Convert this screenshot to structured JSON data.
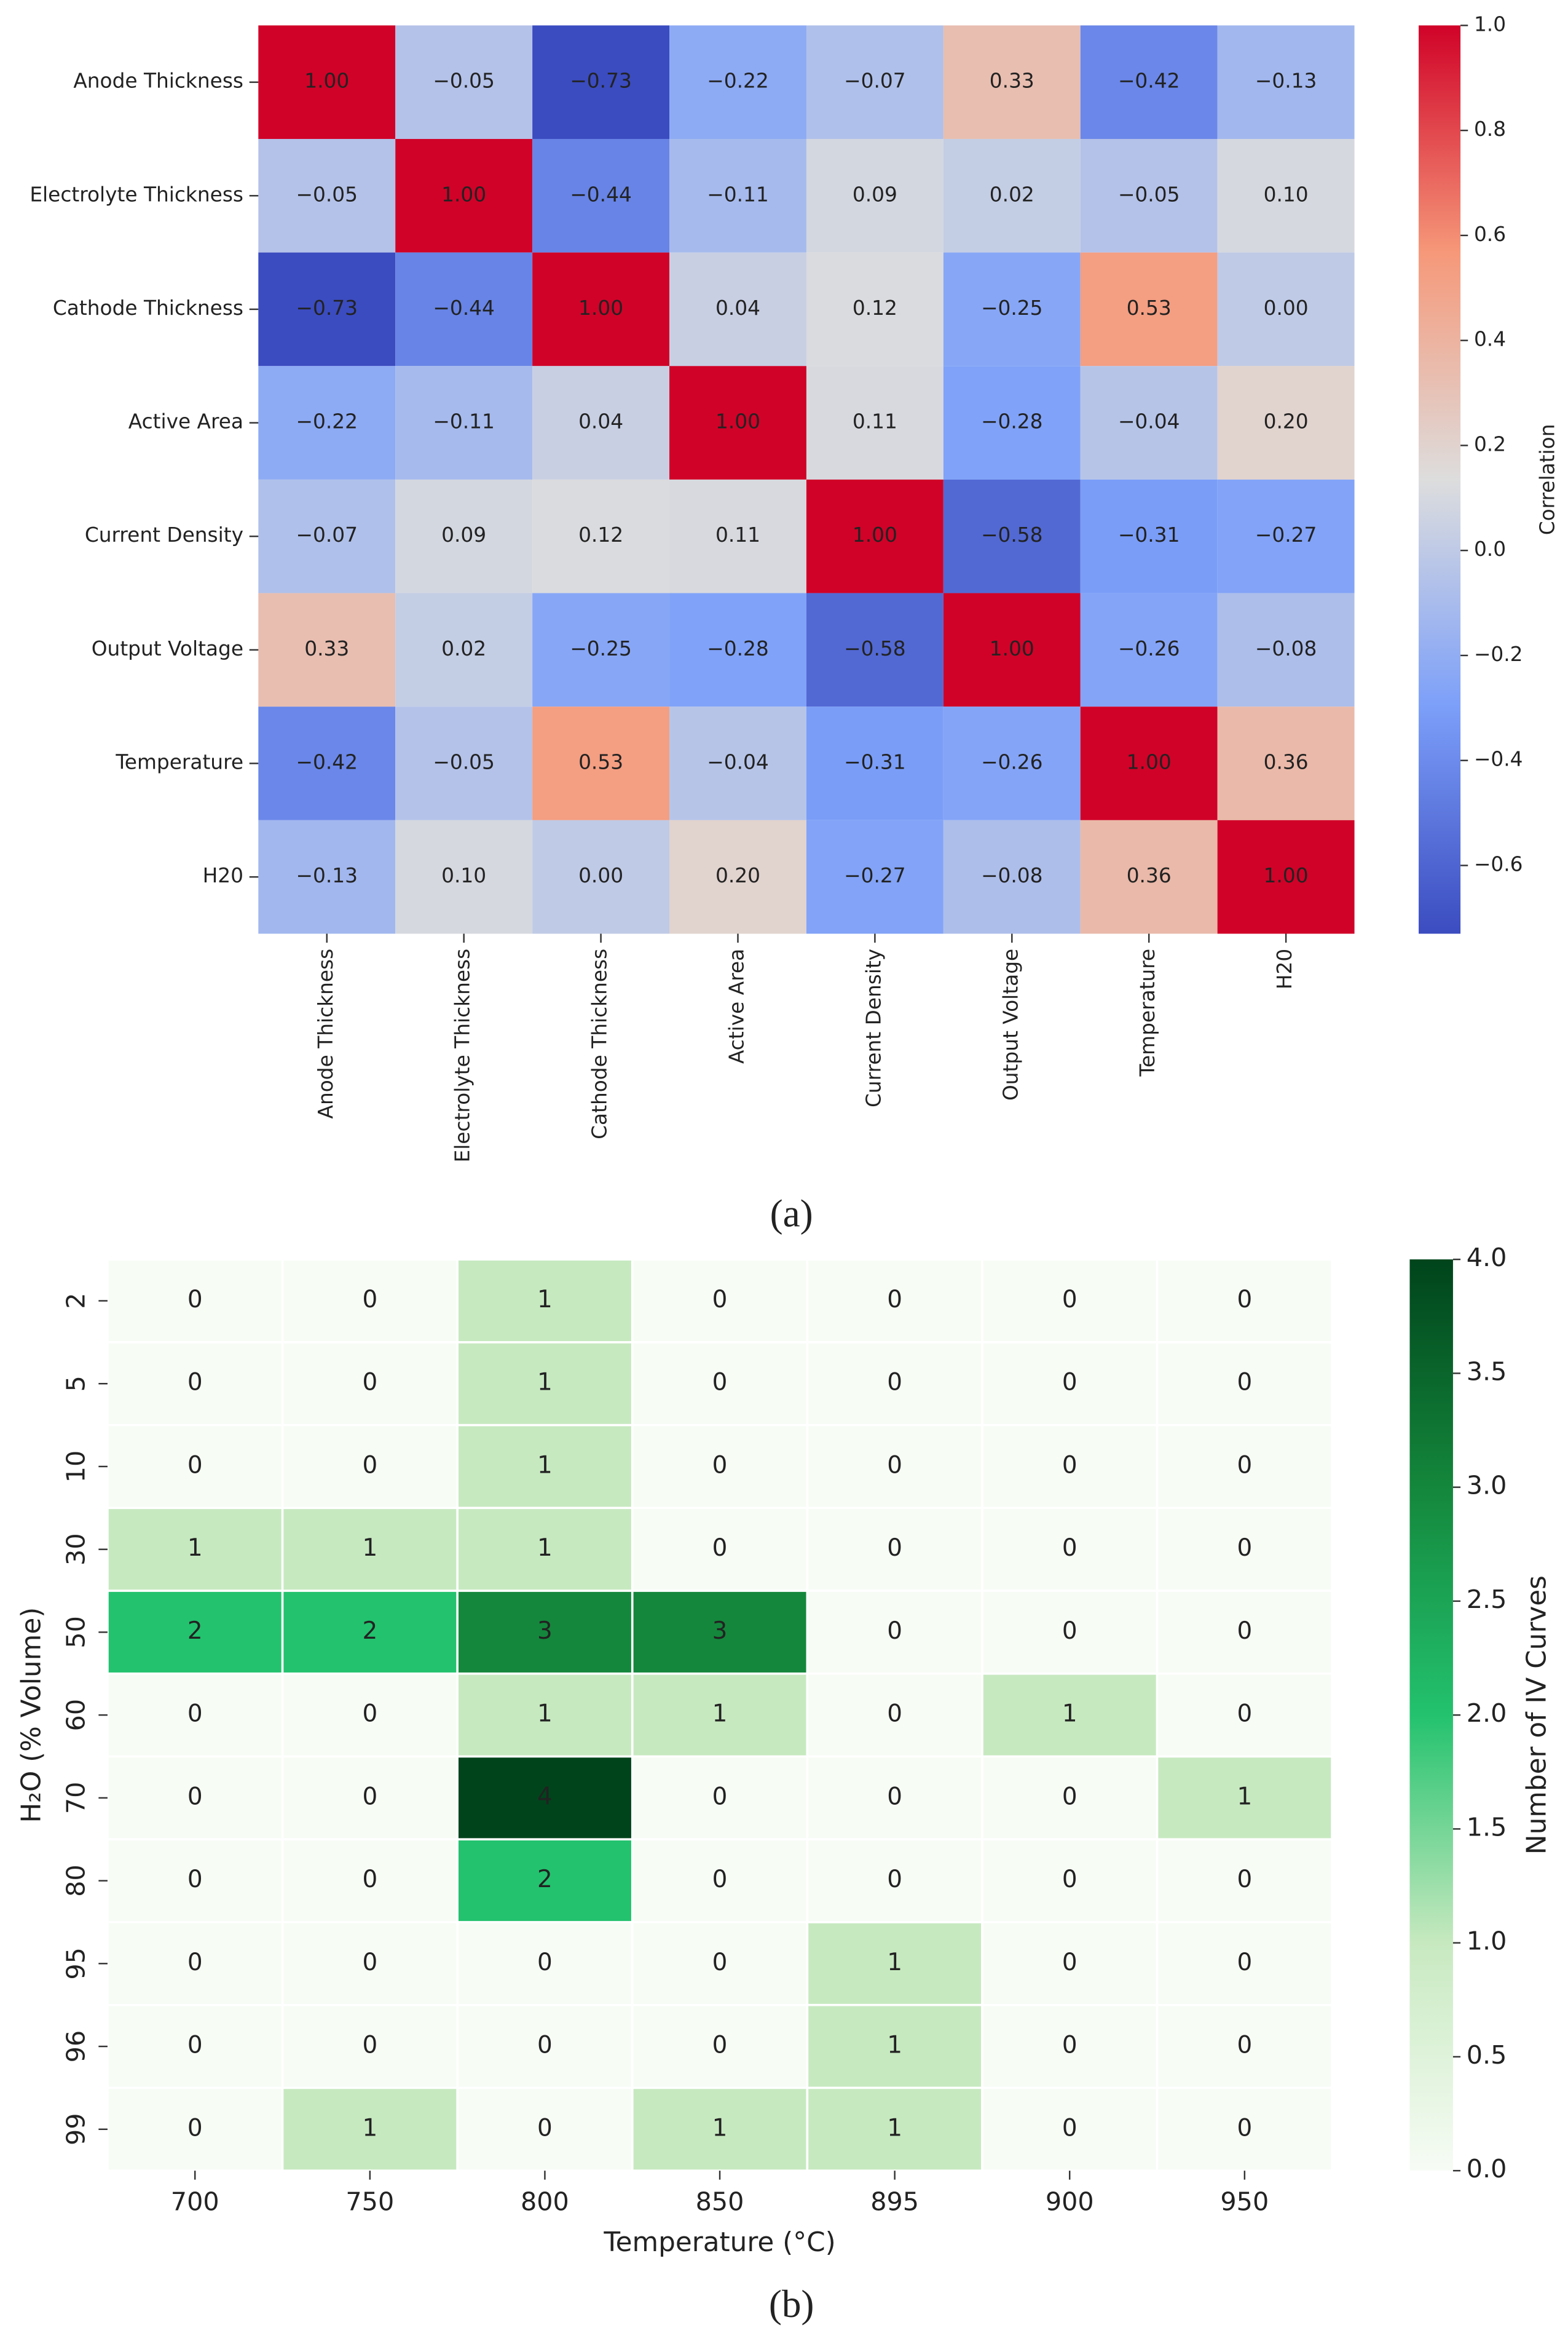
{
  "chart_data": [
    {
      "type": "heatmap",
      "label": "(a)",
      "colormap": "coolwarm",
      "x": [
        "Anode Thickness",
        "Electrolyte Thickness",
        "Cathode Thickness",
        "Active Area",
        "Current Density",
        "Output Voltage",
        "Temperature",
        "H20"
      ],
      "y": [
        "Anode Thickness",
        "Electrolyte Thickness",
        "Cathode Thickness",
        "Active Area",
        "Current Density",
        "Output Voltage",
        "Temperature",
        "H20"
      ],
      "values": [
        [
          1.0,
          -0.05,
          -0.73,
          -0.22,
          -0.07,
          0.33,
          -0.42,
          -0.13
        ],
        [
          -0.05,
          1.0,
          -0.44,
          -0.11,
          0.09,
          0.02,
          -0.05,
          0.1
        ],
        [
          -0.73,
          -0.44,
          1.0,
          0.04,
          0.12,
          -0.25,
          0.53,
          0.0
        ],
        [
          -0.22,
          -0.11,
          0.04,
          1.0,
          0.11,
          -0.28,
          -0.04,
          0.2
        ],
        [
          -0.07,
          0.09,
          0.12,
          0.11,
          1.0,
          -0.58,
          -0.31,
          -0.27
        ],
        [
          0.33,
          0.02,
          -0.25,
          -0.28,
          -0.58,
          1.0,
          -0.26,
          -0.08
        ],
        [
          -0.42,
          -0.05,
          0.53,
          -0.04,
          -0.31,
          -0.26,
          1.0,
          0.36
        ],
        [
          -0.13,
          0.1,
          0.0,
          0.2,
          -0.27,
          -0.08,
          0.36,
          1.0
        ]
      ],
      "value_labels": [
        [
          "1.00",
          "−0.05",
          "−0.73",
          "−0.22",
          "−0.07",
          "0.33",
          "−0.42",
          "−0.13"
        ],
        [
          "−0.05",
          "1.00",
          "−0.44",
          "−0.11",
          "0.09",
          "0.02",
          "−0.05",
          "0.10"
        ],
        [
          "−0.73",
          "−0.44",
          "1.00",
          "0.04",
          "0.12",
          "−0.25",
          "0.53",
          "0.00"
        ],
        [
          "−0.22",
          "−0.11",
          "0.04",
          "1.00",
          "0.11",
          "−0.28",
          "−0.04",
          "0.20"
        ],
        [
          "−0.07",
          "0.09",
          "0.12",
          "0.11",
          "1.00",
          "−0.58",
          "−0.31",
          "−0.27"
        ],
        [
          "0.33",
          "0.02",
          "−0.25",
          "−0.28",
          "−0.58",
          "1.00",
          "−0.26",
          "−0.08"
        ],
        [
          "−0.42",
          "−0.05",
          "0.53",
          "−0.04",
          "−0.31",
          "−0.26",
          "1.00",
          "0.36"
        ],
        [
          "−0.13",
          "0.10",
          "0.00",
          "0.20",
          "−0.27",
          "−0.08",
          "0.36",
          "1.00"
        ]
      ],
      "colorbar_label": "Correlation",
      "clim": [
        -0.73,
        1.0
      ],
      "cticks": [
        {
          "value": -0.6,
          "label": "−0.6"
        },
        {
          "value": -0.4,
          "label": "−0.4"
        },
        {
          "value": -0.2,
          "label": "−0.2"
        },
        {
          "value": 0,
          "label": "0.0"
        },
        {
          "value": 0.2,
          "label": "0.2"
        },
        {
          "value": 0.4,
          "label": "0.4"
        },
        {
          "value": 0.6,
          "label": "0.6"
        },
        {
          "value": 0.8,
          "label": "0.8"
        },
        {
          "value": 1,
          "label": "1.0"
        }
      ]
    },
    {
      "type": "heatmap",
      "label": "(b)",
      "colormap": "greens",
      "x": [
        "700",
        "750",
        "800",
        "850",
        "895",
        "900",
        "950"
      ],
      "y": [
        "2",
        "5",
        "10",
        "30",
        "50",
        "60",
        "70",
        "80",
        "95",
        "96",
        "99"
      ],
      "xlabel": "Temperature (°C)",
      "ylabel": "H₂O (% Volume)",
      "values": [
        [
          0,
          0,
          1,
          0,
          0,
          0,
          0
        ],
        [
          0,
          0,
          1,
          0,
          0,
          0,
          0
        ],
        [
          0,
          0,
          1,
          0,
          0,
          0,
          0
        ],
        [
          1,
          1,
          1,
          0,
          0,
          0,
          0
        ],
        [
          2,
          2,
          3,
          3,
          0,
          0,
          0
        ],
        [
          0,
          0,
          1,
          1,
          0,
          1,
          0
        ],
        [
          0,
          0,
          4,
          0,
          0,
          0,
          1
        ],
        [
          0,
          0,
          2,
          0,
          0,
          0,
          0
        ],
        [
          0,
          0,
          0,
          0,
          1,
          0,
          0
        ],
        [
          0,
          0,
          0,
          0,
          1,
          0,
          0
        ],
        [
          0,
          1,
          0,
          1,
          1,
          0,
          0
        ]
      ],
      "colorbar_label": "Number of IV Curves",
      "clim": [
        0,
        4
      ],
      "cticks": [
        {
          "value": 0,
          "label": "0.0"
        },
        {
          "value": 0.5,
          "label": "0.5"
        },
        {
          "value": 1,
          "label": "1.0"
        },
        {
          "value": 1.5,
          "label": "1.5"
        },
        {
          "value": 2,
          "label": "2.0"
        },
        {
          "value": 2.5,
          "label": "2.5"
        },
        {
          "value": 3,
          "label": "3.0"
        },
        {
          "value": 3.5,
          "label": "3.5"
        },
        {
          "value": 4,
          "label": "4.0"
        }
      ]
    }
  ]
}
